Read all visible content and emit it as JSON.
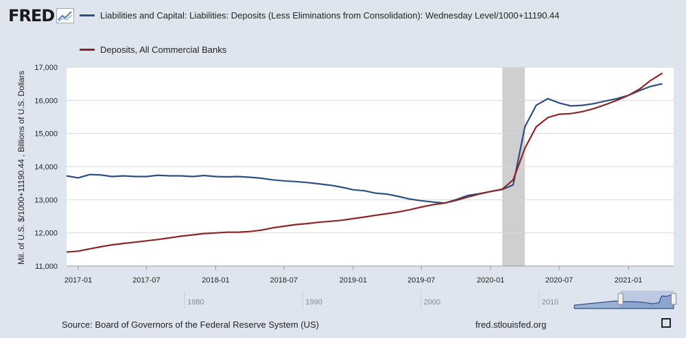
{
  "logo": {
    "text": "FRED"
  },
  "legend": [
    {
      "label": "Liabilities and Capital: Liabilities: Deposits (Less Eliminations from Consolidation): Wednesday Level/1000+11190.44",
      "color": "#2c4d85"
    },
    {
      "label": "Deposits, All Commercial Banks",
      "color": "#8e2323"
    }
  ],
  "ylabel": "Mil. of U.S. $/1000+11190.44 , Billions of U.S. Dollars",
  "footer": {
    "source": "Source: Board of Governors of the Federal Reserve System (US)",
    "url": "fred.stlouisfed.org"
  },
  "icons": {
    "fullscreen": "fullscreen-icon"
  },
  "chart_data": {
    "type": "line",
    "xlim": [
      "2016-12-01",
      "2021-05-01"
    ],
    "ylim": [
      11000,
      17000
    ],
    "y_ticks": [
      11000,
      12000,
      13000,
      14000,
      15000,
      16000,
      17000
    ],
    "y_tick_labels": [
      "11,000",
      "12,000",
      "13,000",
      "14,000",
      "15,000",
      "16,000",
      "17,000"
    ],
    "x_ticks": [
      "2017-01",
      "2017-07",
      "2018-01",
      "2018-07",
      "2019-01",
      "2019-07",
      "2020-01",
      "2020-07",
      "2021-01"
    ],
    "grid": true,
    "recession": {
      "start": "2020-02",
      "end": "2020-04"
    },
    "series": [
      {
        "name": "Liabilities and Capital: Liabilities: Deposits (Less Eliminations from Consolidation): Wednesday Level/1000+11190.44",
        "color": "#2c4d85",
        "points": [
          [
            "2016-12",
            13720
          ],
          [
            "2017-01",
            13660
          ],
          [
            "2017-02",
            13760
          ],
          [
            "2017-03",
            13750
          ],
          [
            "2017-04",
            13700
          ],
          [
            "2017-05",
            13720
          ],
          [
            "2017-06",
            13700
          ],
          [
            "2017-07",
            13700
          ],
          [
            "2017-08",
            13740
          ],
          [
            "2017-09",
            13720
          ],
          [
            "2017-10",
            13720
          ],
          [
            "2017-11",
            13700
          ],
          [
            "2017-12",
            13730
          ],
          [
            "2018-01",
            13700
          ],
          [
            "2018-02",
            13690
          ],
          [
            "2018-03",
            13700
          ],
          [
            "2018-04",
            13680
          ],
          [
            "2018-05",
            13650
          ],
          [
            "2018-06",
            13600
          ],
          [
            "2018-07",
            13570
          ],
          [
            "2018-08",
            13550
          ],
          [
            "2018-09",
            13520
          ],
          [
            "2018-10",
            13480
          ],
          [
            "2018-11",
            13440
          ],
          [
            "2018-12",
            13380
          ],
          [
            "2019-01",
            13300
          ],
          [
            "2019-02",
            13270
          ],
          [
            "2019-03",
            13200
          ],
          [
            "2019-04",
            13170
          ],
          [
            "2019-05",
            13100
          ],
          [
            "2019-06",
            13020
          ],
          [
            "2019-07",
            12970
          ],
          [
            "2019-08",
            12930
          ],
          [
            "2019-09",
            12900
          ],
          [
            "2019-10",
            13000
          ],
          [
            "2019-11",
            13130
          ],
          [
            "2019-12",
            13180
          ],
          [
            "2020-01",
            13250
          ],
          [
            "2020-02",
            13310
          ],
          [
            "2020-03",
            13450
          ],
          [
            "2020-04",
            15200
          ],
          [
            "2020-05",
            15850
          ],
          [
            "2020-06",
            16050
          ],
          [
            "2020-07",
            15920
          ],
          [
            "2020-08",
            15830
          ],
          [
            "2020-09",
            15850
          ],
          [
            "2020-10",
            15900
          ],
          [
            "2020-11",
            15980
          ],
          [
            "2020-12",
            16050
          ],
          [
            "2021-01",
            16150
          ],
          [
            "2021-02",
            16300
          ],
          [
            "2021-03",
            16420
          ],
          [
            "2021-04",
            16500
          ]
        ]
      },
      {
        "name": "Deposits, All Commercial Banks",
        "color": "#8e2323",
        "points": [
          [
            "2016-12",
            11420
          ],
          [
            "2017-01",
            11450
          ],
          [
            "2017-02",
            11520
          ],
          [
            "2017-03",
            11580
          ],
          [
            "2017-04",
            11640
          ],
          [
            "2017-05",
            11680
          ],
          [
            "2017-06",
            11720
          ],
          [
            "2017-07",
            11760
          ],
          [
            "2017-08",
            11800
          ],
          [
            "2017-09",
            11850
          ],
          [
            "2017-10",
            11900
          ],
          [
            "2017-11",
            11940
          ],
          [
            "2017-12",
            11980
          ],
          [
            "2018-01",
            12000
          ],
          [
            "2018-02",
            12020
          ],
          [
            "2018-03",
            12020
          ],
          [
            "2018-04",
            12040
          ],
          [
            "2018-05",
            12080
          ],
          [
            "2018-06",
            12150
          ],
          [
            "2018-07",
            12200
          ],
          [
            "2018-08",
            12250
          ],
          [
            "2018-09",
            12280
          ],
          [
            "2018-10",
            12320
          ],
          [
            "2018-11",
            12350
          ],
          [
            "2018-12",
            12380
          ],
          [
            "2019-01",
            12430
          ],
          [
            "2019-02",
            12480
          ],
          [
            "2019-03",
            12530
          ],
          [
            "2019-04",
            12580
          ],
          [
            "2019-05",
            12630
          ],
          [
            "2019-06",
            12700
          ],
          [
            "2019-07",
            12780
          ],
          [
            "2019-08",
            12850
          ],
          [
            "2019-09",
            12900
          ],
          [
            "2019-10",
            12980
          ],
          [
            "2019-11",
            13080
          ],
          [
            "2019-12",
            13170
          ],
          [
            "2020-01",
            13250
          ],
          [
            "2020-02",
            13320
          ],
          [
            "2020-03",
            13600
          ],
          [
            "2020-04",
            14550
          ],
          [
            "2020-05",
            15200
          ],
          [
            "2020-06",
            15480
          ],
          [
            "2020-07",
            15580
          ],
          [
            "2020-08",
            15600
          ],
          [
            "2020-09",
            15660
          ],
          [
            "2020-10",
            15750
          ],
          [
            "2020-11",
            15870
          ],
          [
            "2020-12",
            16000
          ],
          [
            "2021-01",
            16150
          ],
          [
            "2021-02",
            16350
          ],
          [
            "2021-03",
            16600
          ],
          [
            "2021-04",
            16820
          ]
        ]
      }
    ],
    "navigator": {
      "labels": [
        "1980",
        "1990",
        "2000",
        "2010"
      ],
      "range": [
        1970,
        2021.4
      ],
      "selected": [
        2016.9,
        2021.4
      ]
    }
  }
}
